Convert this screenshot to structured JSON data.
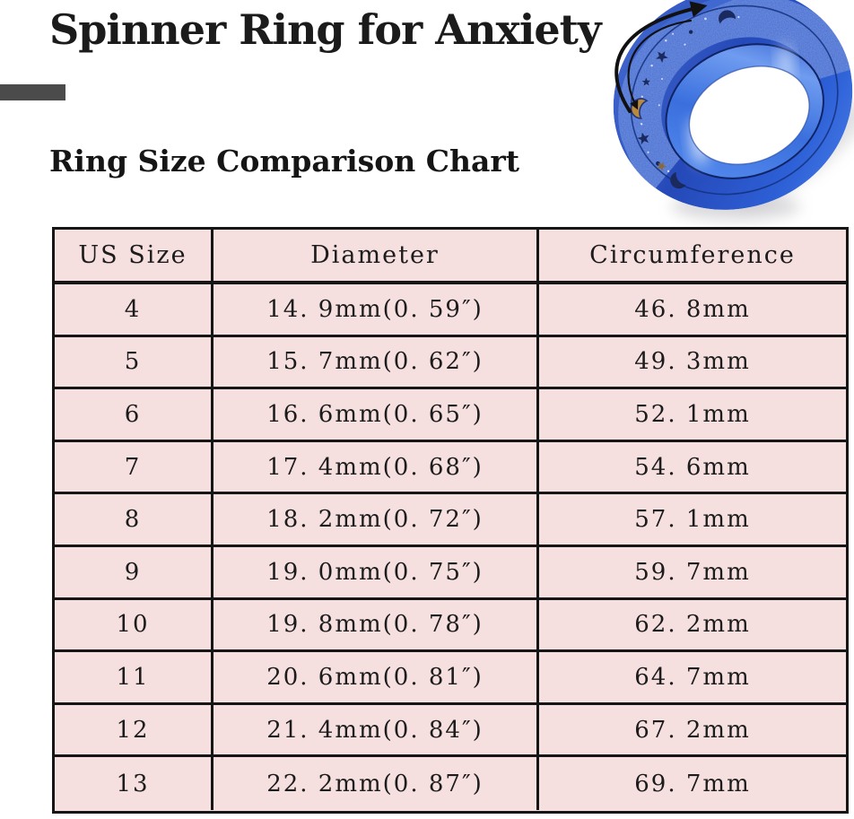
{
  "header": {
    "title": "Spinner Ring for Anxiety",
    "subtitle": "Ring Size Comparison Chart"
  },
  "ring_photo": {
    "name": "blue-spinner-ring-with-moon-and-star-cutouts",
    "band_color": "#2b55c8",
    "texture_color": "#3f68d0",
    "inner_wall_color": "#3a6fdd",
    "cutout_gold": "#b9893c",
    "cutout_dark": "#1b2a5e",
    "arrow_color": "#111111"
  },
  "style": {
    "table_bg": "#f5dfdf",
    "border_color": "#161616",
    "bar_color": "#4b4b4b"
  },
  "chart_data": {
    "type": "table",
    "title": "Ring Size Comparison Chart",
    "columns": [
      "US Size",
      "Diameter",
      "Circumference"
    ],
    "rows": [
      [
        "4",
        "14. 9mm(0. 59″)",
        "46. 8mm"
      ],
      [
        "5",
        "15. 7mm(0. 62″)",
        "49. 3mm"
      ],
      [
        "6",
        "16. 6mm(0. 65″)",
        "52. 1mm"
      ],
      [
        "7",
        "17. 4mm(0. 68″)",
        "54. 6mm"
      ],
      [
        "8",
        "18. 2mm(0. 72″)",
        "57. 1mm"
      ],
      [
        "9",
        "19. 0mm(0. 75″)",
        "59. 7mm"
      ],
      [
        "10",
        "19. 8mm(0. 78″)",
        "62. 2mm"
      ],
      [
        "11",
        "20. 6mm(0. 81″)",
        "64. 7mm"
      ],
      [
        "12",
        "21. 4mm(0. 84″)",
        "67. 2mm"
      ],
      [
        "13",
        "22. 2mm(0. 87″)",
        "69. 7mm"
      ]
    ]
  }
}
